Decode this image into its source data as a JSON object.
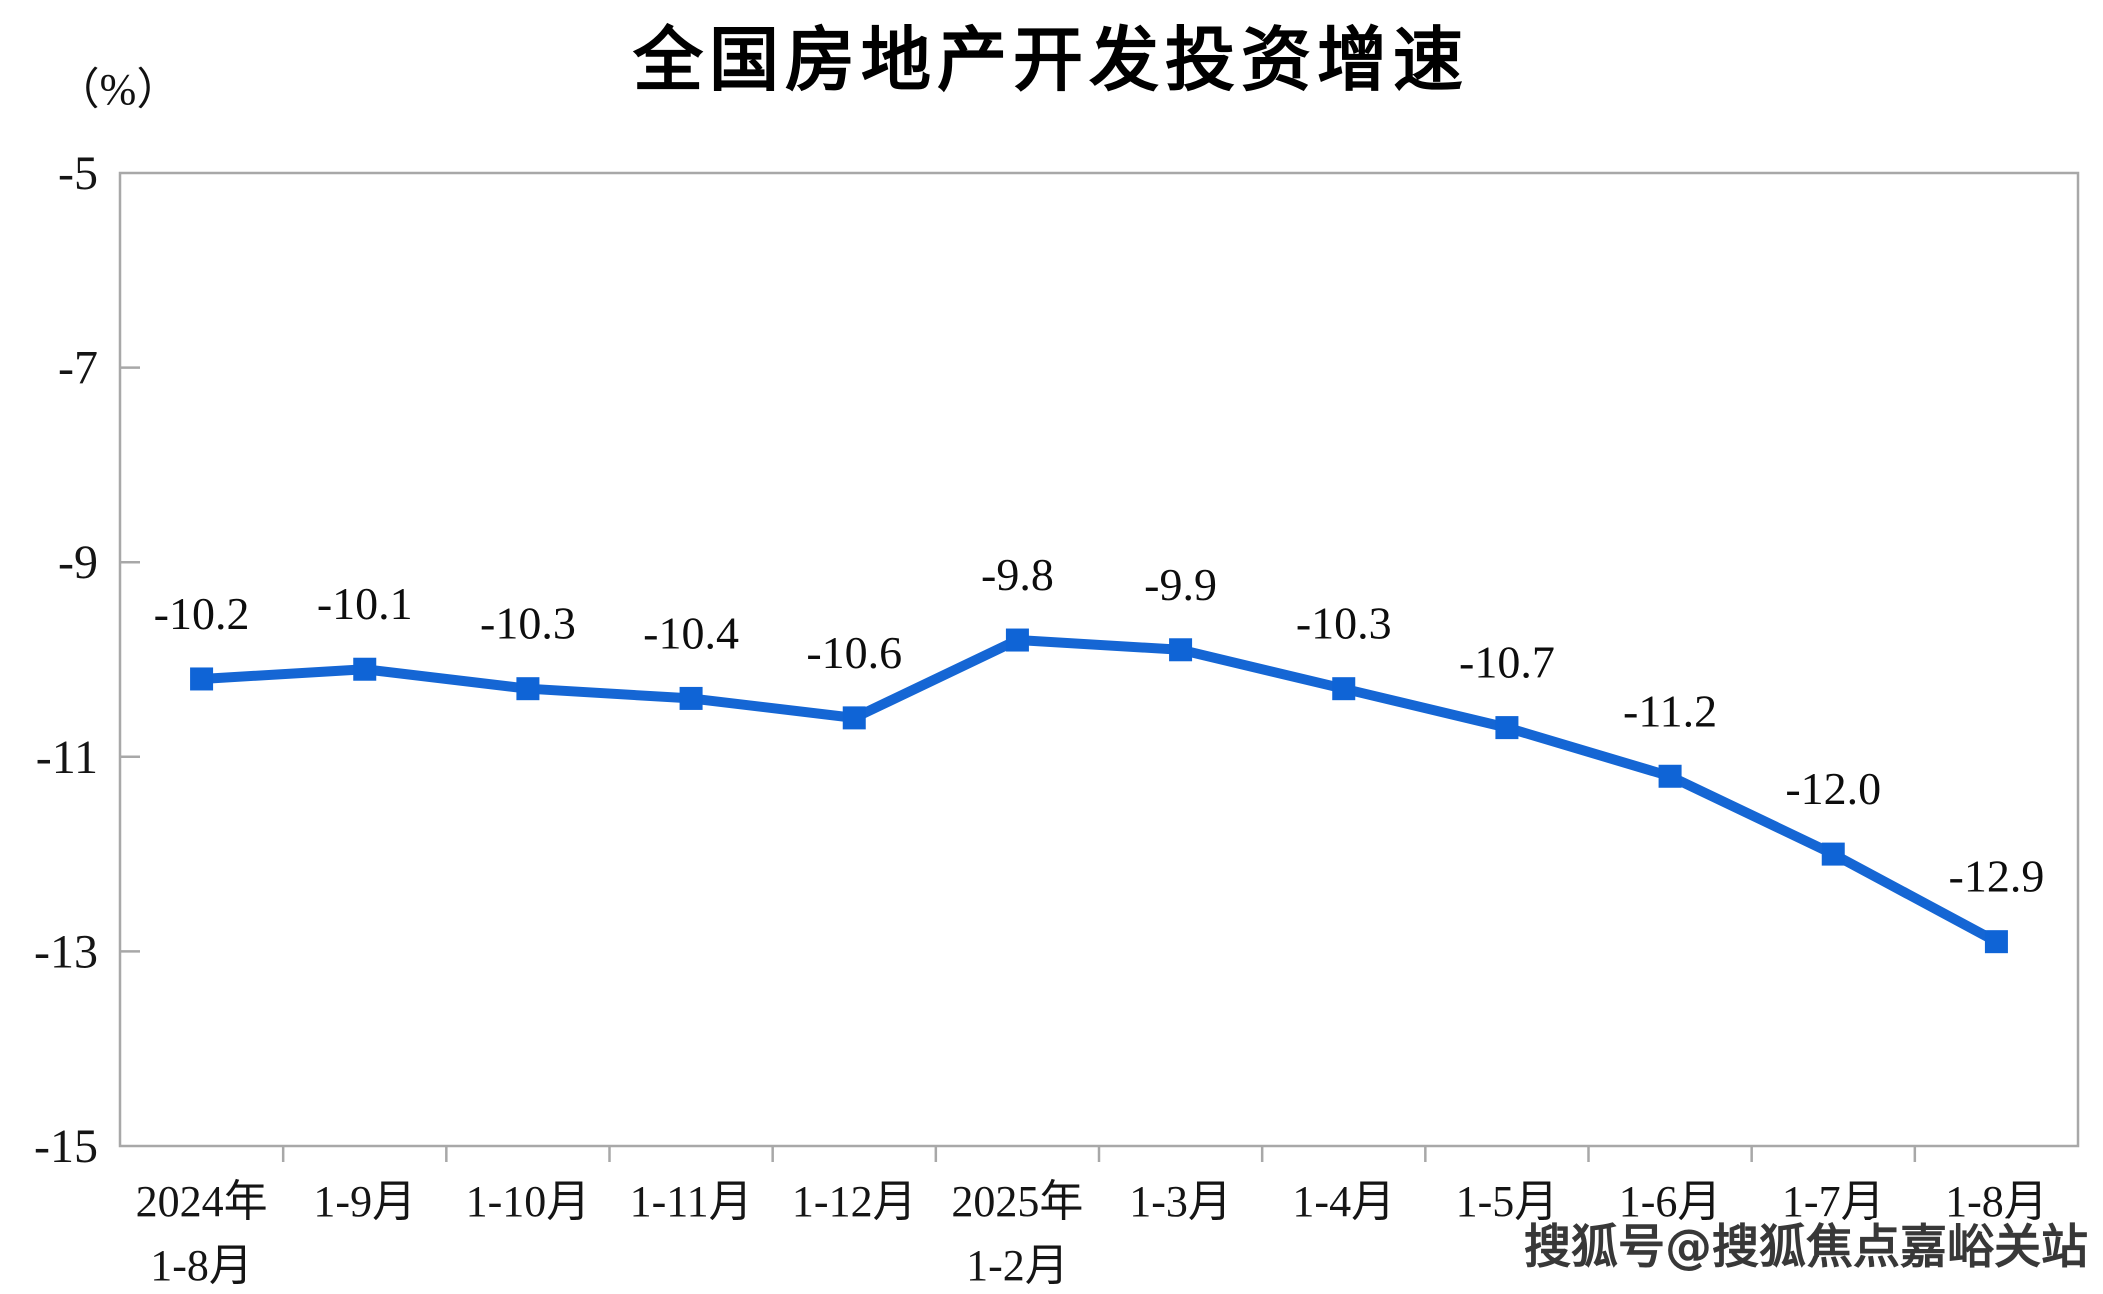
{
  "chart_data": {
    "type": "line",
    "title": "全国房地产开发投资增速",
    "unit_label": "（%）",
    "categories": [
      [
        "2024年",
        "1-8月"
      ],
      [
        "1-9月"
      ],
      [
        "1-10月"
      ],
      [
        "1-11月"
      ],
      [
        "1-12月"
      ],
      [
        "2025年",
        "1-2月"
      ],
      [
        "1-3月"
      ],
      [
        "1-4月"
      ],
      [
        "1-5月"
      ],
      [
        "1-6月"
      ],
      [
        "1-7月"
      ],
      [
        "1-8月"
      ]
    ],
    "values": [
      -10.2,
      -10.1,
      -10.3,
      -10.4,
      -10.6,
      -9.8,
      -9.9,
      -10.3,
      -10.7,
      -11.2,
      -12.0,
      -12.9
    ],
    "data_labels": [
      "-10.2",
      "-10.1",
      "-10.3",
      "-10.4",
      "-10.6",
      "-9.8",
      "-9.9",
      "-10.3",
      "-10.7",
      "-11.2",
      "-12.0",
      "-12.9"
    ],
    "series_name": "全国房地产开发投资增速",
    "y_ticks": [
      "-5",
      "-7",
      "-9",
      "-11",
      "-13",
      "-15"
    ],
    "ylim": [
      -15,
      -5
    ],
    "grid": false,
    "legend": false,
    "marker": "square",
    "line_color": "#1566d4",
    "marker_color": "#0f64d6",
    "axis_color": "#a8a8a8",
    "label_color": "#0d0d0d"
  },
  "watermark": {
    "text": "搜狐号@搜狐焦点嘉峪关站"
  }
}
